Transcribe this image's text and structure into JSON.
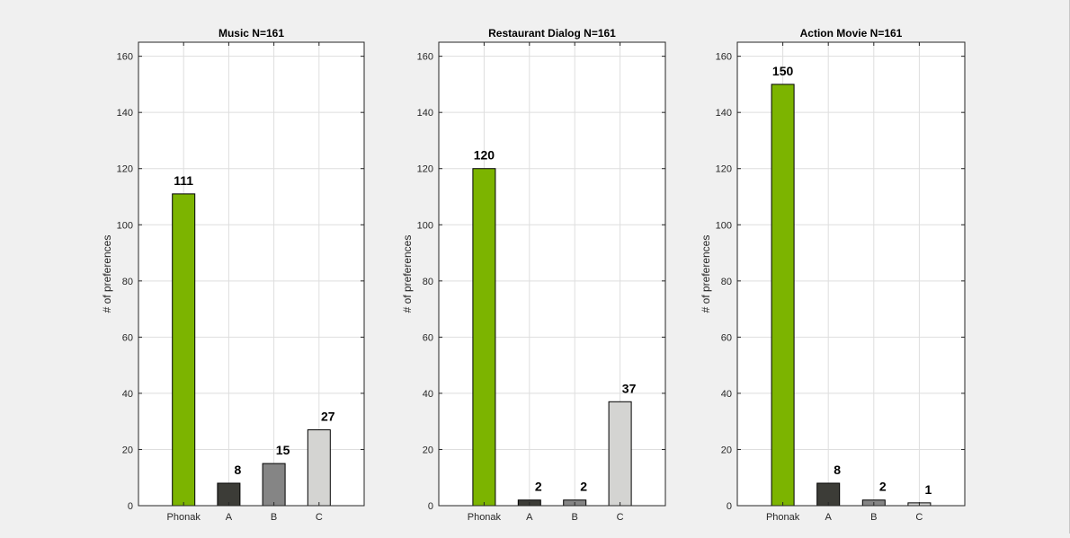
{
  "chart_data": [
    {
      "type": "bar",
      "title": "Music  N=161",
      "ylabel": "# of preferences",
      "xlabel": "",
      "categories": [
        "Phonak",
        "A",
        "B",
        "C"
      ],
      "values": [
        111,
        8,
        15,
        27
      ],
      "data_labels": [
        "111",
        "8",
        "15",
        "27"
      ],
      "ylim": [
        0,
        165
      ],
      "yticks": [
        0,
        20,
        40,
        60,
        80,
        100,
        120,
        140,
        160
      ],
      "grid": true,
      "bar_colors": [
        "#7cb400",
        "#3c3c37",
        "#858585",
        "#d4d4d2"
      ]
    },
    {
      "type": "bar",
      "title": "Restaurant Dialog  N=161",
      "ylabel": "# of preferences",
      "xlabel": "",
      "categories": [
        "Phonak",
        "A",
        "B",
        "C"
      ],
      "values": [
        120,
        2,
        2,
        37
      ],
      "data_labels": [
        "120",
        "2",
        "2",
        "37"
      ],
      "ylim": [
        0,
        165
      ],
      "yticks": [
        0,
        20,
        40,
        60,
        80,
        100,
        120,
        140,
        160
      ],
      "grid": true,
      "bar_colors": [
        "#7cb400",
        "#3c3c37",
        "#858585",
        "#d4d4d2"
      ]
    },
    {
      "type": "bar",
      "title": "Action Movie  N=161",
      "ylabel": "# of preferences",
      "xlabel": "",
      "categories": [
        "Phonak",
        "A",
        "B",
        "C"
      ],
      "values": [
        150,
        8,
        2,
        1
      ],
      "data_labels": [
        "150",
        "8",
        "2",
        "1"
      ],
      "ylim": [
        0,
        165
      ],
      "yticks": [
        0,
        20,
        40,
        60,
        80,
        100,
        120,
        140,
        160
      ],
      "grid": true,
      "bar_colors": [
        "#7cb400",
        "#3c3c37",
        "#858585",
        "#d4d4d2"
      ]
    }
  ]
}
